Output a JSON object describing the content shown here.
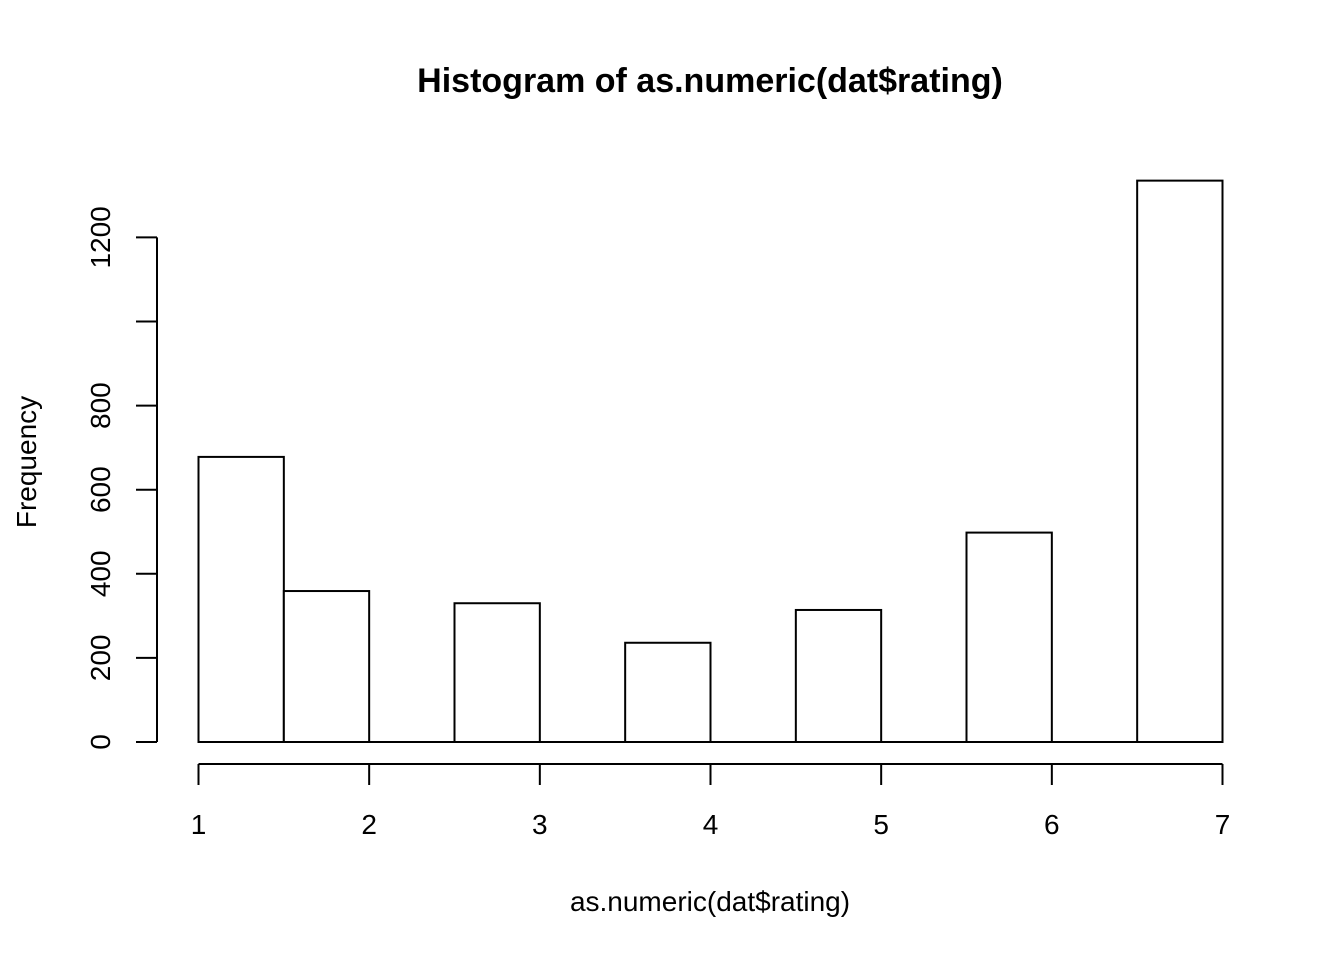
{
  "chart_data": {
    "type": "bar",
    "title": "Histogram of as.numeric(dat$rating)",
    "xlabel": "as.numeric(dat$rating)",
    "ylabel": "Frequency",
    "xlim": [
      1,
      7
    ],
    "ylim": [
      0,
      1340
    ],
    "x_ticks": [
      1,
      2,
      3,
      4,
      5,
      6,
      7
    ],
    "y_ticks": [
      0,
      200,
      400,
      600,
      800,
      1000,
      1200
    ],
    "y_tick_labels": [
      "0",
      "200",
      "400",
      "600",
      "800",
      "",
      "1200"
    ],
    "bins": [
      {
        "x0": 1.0,
        "x1": 1.5,
        "count": 678
      },
      {
        "x0": 1.5,
        "x1": 2.0,
        "count": 359
      },
      {
        "x0": 2.0,
        "x1": 2.5,
        "count": 0
      },
      {
        "x0": 2.5,
        "x1": 3.0,
        "count": 330
      },
      {
        "x0": 3.0,
        "x1": 3.5,
        "count": 0
      },
      {
        "x0": 3.5,
        "x1": 4.0,
        "count": 236
      },
      {
        "x0": 4.0,
        "x1": 4.5,
        "count": 0
      },
      {
        "x0": 4.5,
        "x1": 5.0,
        "count": 314
      },
      {
        "x0": 5.0,
        "x1": 5.5,
        "count": 0
      },
      {
        "x0": 5.5,
        "x1": 6.0,
        "count": 498
      },
      {
        "x0": 6.0,
        "x1": 6.5,
        "count": 0
      },
      {
        "x0": 6.5,
        "x1": 7.0,
        "count": 1335
      }
    ],
    "grid": false,
    "legend": "none"
  }
}
